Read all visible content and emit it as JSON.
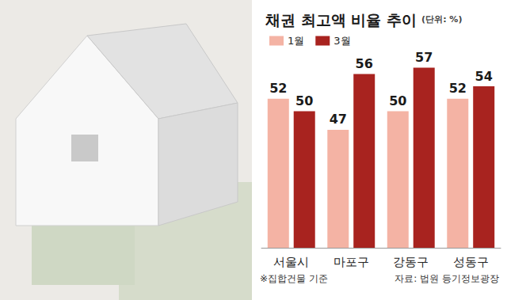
{
  "chart_data": {
    "type": "bar",
    "title": "채권 최고액 비율 추이",
    "subtitle": "(단위: %)",
    "categories": [
      "서울시",
      "마포구",
      "강동구",
      "성동구"
    ],
    "series": [
      {
        "name": "1월",
        "color": "#f4b3a4",
        "values": [
          52,
          47,
          50,
          52
        ]
      },
      {
        "name": "3월",
        "color": "#a8231f",
        "values": [
          50,
          56,
          57,
          54
        ]
      }
    ],
    "ylim": [
      28,
      60
    ],
    "grid": false,
    "legend": "upper left",
    "data_labels": true,
    "tick_labels": "x",
    "annotations": [
      "※집합건물 기준",
      "자료: 법원 등기정보광장"
    ]
  }
}
